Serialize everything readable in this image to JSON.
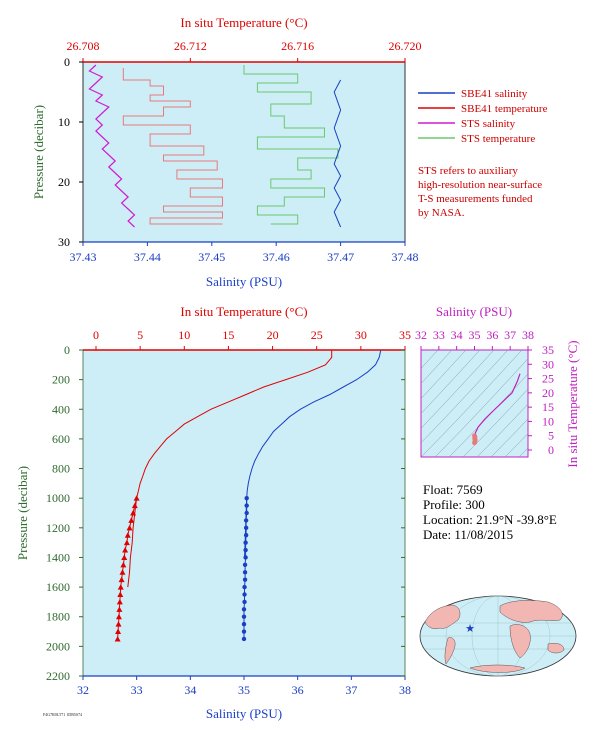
{
  "colors": {
    "salinity": "#1a3fc4",
    "temperature": "#e00000",
    "sts_salinity": "#d11bd1",
    "sts_temperature": "#e87a7a",
    "sts_temperature_green": "#6cc86c",
    "plot_bg": "#cdeef7",
    "axis_green": "#2f6b2f",
    "axis_magenta": "#c020c0"
  },
  "legend": [
    {
      "label": "SBE41 salinity",
      "color": "#1a3fc4"
    },
    {
      "label": "SBE41 temperature",
      "color": "#e00000"
    },
    {
      "label": "STS salinity",
      "color": "#d11bd1"
    },
    {
      "label": "STS temperature",
      "color": "#6cc86c"
    }
  ],
  "note": [
    "STS refers to auxiliary",
    "high-resolution near-surface",
    "T-S measurements funded",
    "by NASA."
  ],
  "float_info": {
    "float": "Float:  7569",
    "profile": "Profile:  300",
    "location": "Location:  21.9°N  -39.8°E",
    "date": "Date:  11/08/2015"
  },
  "footer_id": "F4G7R0LT71 1DB5S74",
  "chart_data": [
    {
      "id": "near-surface",
      "type": "line",
      "top_axis_label": "In situ Temperature (°C)",
      "bottom_axis_label": "Salinity (PSU)",
      "left_axis_label": "Pressure (decibar)",
      "temp_ticks": [
        "26.708",
        "26.712",
        "26.716",
        "26.720"
      ],
      "temp_range": [
        26.708,
        26.72
      ],
      "sal_ticks": [
        "37.43",
        "37.44",
        "37.45",
        "37.46",
        "37.47",
        "37.48"
      ],
      "sal_range": [
        37.43,
        37.48
      ],
      "p_ticks": [
        "0",
        "10",
        "20",
        "30"
      ],
      "p_range": [
        0,
        30
      ],
      "series": [
        {
          "name": "SBE41 salinity",
          "x": [
            37.47,
            37.469,
            37.47,
            37.469,
            37.47,
            37.469,
            37.47,
            37.469,
            37.47,
            37.469,
            37.47
          ],
          "y": [
            3.0,
            5.0,
            8.0,
            11.0,
            14.0,
            17.0,
            19.0,
            21.0,
            23.0,
            25.0,
            27.5
          ]
        },
        {
          "name": "STS salinity",
          "x": [
            37.432,
            37.431,
            37.433,
            37.432,
            37.431,
            37.433,
            37.432,
            37.434,
            37.433,
            37.432,
            37.433,
            37.432,
            37.433,
            37.434,
            37.433,
            37.434,
            37.435,
            37.434,
            37.435,
            37.436,
            37.435,
            37.436,
            37.437,
            37.436,
            37.437,
            37.438,
            37.437,
            37.438
          ],
          "y": [
            0.5,
            1.5,
            2.5,
            3.5,
            4.5,
            5.5,
            6.5,
            7.5,
            8.5,
            9.5,
            10.5,
            11.5,
            12.5,
            13.5,
            14.5,
            15.5,
            16.5,
            17.5,
            18.5,
            19.5,
            20.5,
            21.5,
            22.5,
            23.5,
            24.5,
            25.5,
            26.5,
            27.5
          ]
        },
        {
          "name": "STS temperature (pink)",
          "x": [
            26.7095,
            26.7105,
            26.711,
            26.7105,
            26.712,
            26.711,
            26.7095,
            26.712,
            26.7105,
            26.7125,
            26.711,
            26.713,
            26.7115,
            26.7132,
            26.712,
            26.7132,
            26.711,
            26.7132,
            26.7105,
            26.7132
          ],
          "y": [
            1.0,
            3.0,
            4.0,
            5.5,
            6.5,
            7.5,
            9.0,
            10.5,
            12.0,
            14.0,
            15.5,
            16.5,
            18.0,
            19.5,
            21.0,
            22.5,
            24.0,
            25.0,
            26.0,
            27.0
          ]
        },
        {
          "name": "STS temperature",
          "x": [
            26.714,
            26.716,
            26.7145,
            26.7165,
            26.715,
            26.7155,
            26.717,
            26.7145,
            26.7175,
            26.716,
            26.7165,
            26.715,
            26.717,
            26.7155,
            26.7145,
            26.716,
            26.715
          ],
          "y": [
            0.5,
            2.0,
            3.5,
            5.0,
            7.0,
            9.0,
            11.0,
            12.5,
            14.5,
            16.0,
            18.0,
            19.5,
            21.0,
            22.5,
            24.0,
            25.5,
            27.0
          ]
        }
      ]
    },
    {
      "id": "full-profile",
      "type": "line",
      "top_axis_label": "In situ Temperature (°C)",
      "bottom_axis_label": "Salinity (PSU)",
      "left_axis_label": "Pressure (decibar)",
      "temp_ticks": [
        "0",
        "5",
        "10",
        "15",
        "20",
        "25",
        "30",
        "35"
      ],
      "temp_range": [
        -2,
        35
      ],
      "sal_ticks": [
        "32",
        "33",
        "34",
        "35",
        "36",
        "37",
        "38"
      ],
      "sal_range": [
        32,
        38
      ],
      "p_ticks": [
        "0",
        "200",
        "400",
        "600",
        "800",
        "1000",
        "1200",
        "1400",
        "1600",
        "1800",
        "2000",
        "2200"
      ],
      "p_range": [
        0,
        2200
      ],
      "series": [
        {
          "name": "SBE41 temperature",
          "x": [
            26.7,
            26.7,
            26.0,
            24.0,
            21.5,
            19.0,
            17.0,
            15.0,
            13.0,
            11.5,
            10.0,
            9.0,
            8.0,
            7.3,
            6.6,
            6.0,
            5.6,
            5.3,
            5.0,
            4.8,
            4.6,
            4.4,
            4.2,
            4.1,
            3.9,
            3.8,
            3.6
          ],
          "y": [
            0,
            50,
            100,
            150,
            200,
            250,
            300,
            350,
            400,
            450,
            500,
            550,
            600,
            650,
            700,
            750,
            800,
            850,
            900,
            950,
            1000,
            1100,
            1200,
            1300,
            1400,
            1500,
            1600
          ]
        },
        {
          "name": "SBE41 salinity",
          "x": [
            37.55,
            37.52,
            37.45,
            37.3,
            37.1,
            36.85,
            36.6,
            36.3,
            36.05,
            35.85,
            35.7,
            35.55,
            35.45,
            35.35,
            35.27,
            35.2,
            35.15,
            35.11,
            35.08,
            35.06,
            35.05,
            35.04,
            35.03,
            35.02,
            35.01
          ],
          "y": [
            0,
            50,
            100,
            150,
            200,
            250,
            300,
            350,
            400,
            450,
            500,
            550,
            600,
            650,
            700,
            750,
            800,
            850,
            900,
            950,
            1000,
            1100,
            1200,
            1300,
            1400
          ]
        },
        {
          "name": "SBE41 temperature (points)",
          "x": [
            4.6,
            4.4,
            4.2,
            4.0,
            3.8,
            3.6,
            3.5,
            3.3,
            3.2,
            3.1,
            3.0,
            2.9,
            2.8,
            2.75,
            2.7,
            2.65,
            2.6,
            2.55,
            2.5,
            2.45
          ],
          "y": [
            1000,
            1050,
            1100,
            1150,
            1200,
            1250,
            1300,
            1350,
            1400,
            1450,
            1500,
            1550,
            1600,
            1650,
            1700,
            1750,
            1800,
            1850,
            1900,
            1950
          ]
        },
        {
          "name": "SBE41 salinity (points)",
          "x": [
            35.05,
            35.05,
            35.05,
            35.04,
            35.04,
            35.04,
            35.03,
            35.03,
            35.03,
            35.02,
            35.02,
            35.02,
            35.01,
            35.01,
            35.01,
            35.0,
            35.0,
            35.0,
            35.0,
            35.0
          ],
          "y": [
            1000,
            1050,
            1100,
            1150,
            1200,
            1250,
            1300,
            1350,
            1400,
            1450,
            1500,
            1550,
            1600,
            1650,
            1700,
            1750,
            1800,
            1850,
            1900,
            1950
          ]
        }
      ]
    },
    {
      "id": "ts-diagram",
      "type": "line",
      "top_axis_label": "Salinity (PSU)",
      "right_axis_label": "In situ Temperature (°C)",
      "sal_ticks": [
        "32",
        "33",
        "34",
        "35",
        "36",
        "37",
        "38"
      ],
      "sal_range": [
        32,
        38
      ],
      "temp_ticks": [
        "0",
        "5",
        "10",
        "15",
        "20",
        "25",
        "30",
        "35"
      ],
      "temp_range": [
        -2,
        35
      ],
      "series": [
        {
          "name": "T-S curve",
          "x": [
            35.0,
            35.05,
            35.2,
            35.6,
            36.1,
            36.6,
            37.1,
            37.4,
            37.55
          ],
          "y": [
            4,
            6,
            8,
            11,
            14,
            17,
            20,
            24,
            26.7
          ]
        },
        {
          "name": "deep T-S points",
          "x": [
            35.0,
            35.02,
            35.04,
            35.01,
            35.03,
            35.0,
            35.02
          ],
          "y": [
            2.5,
            3.0,
            3.5,
            4.0,
            4.5,
            5.0,
            2.8
          ]
        }
      ]
    }
  ]
}
